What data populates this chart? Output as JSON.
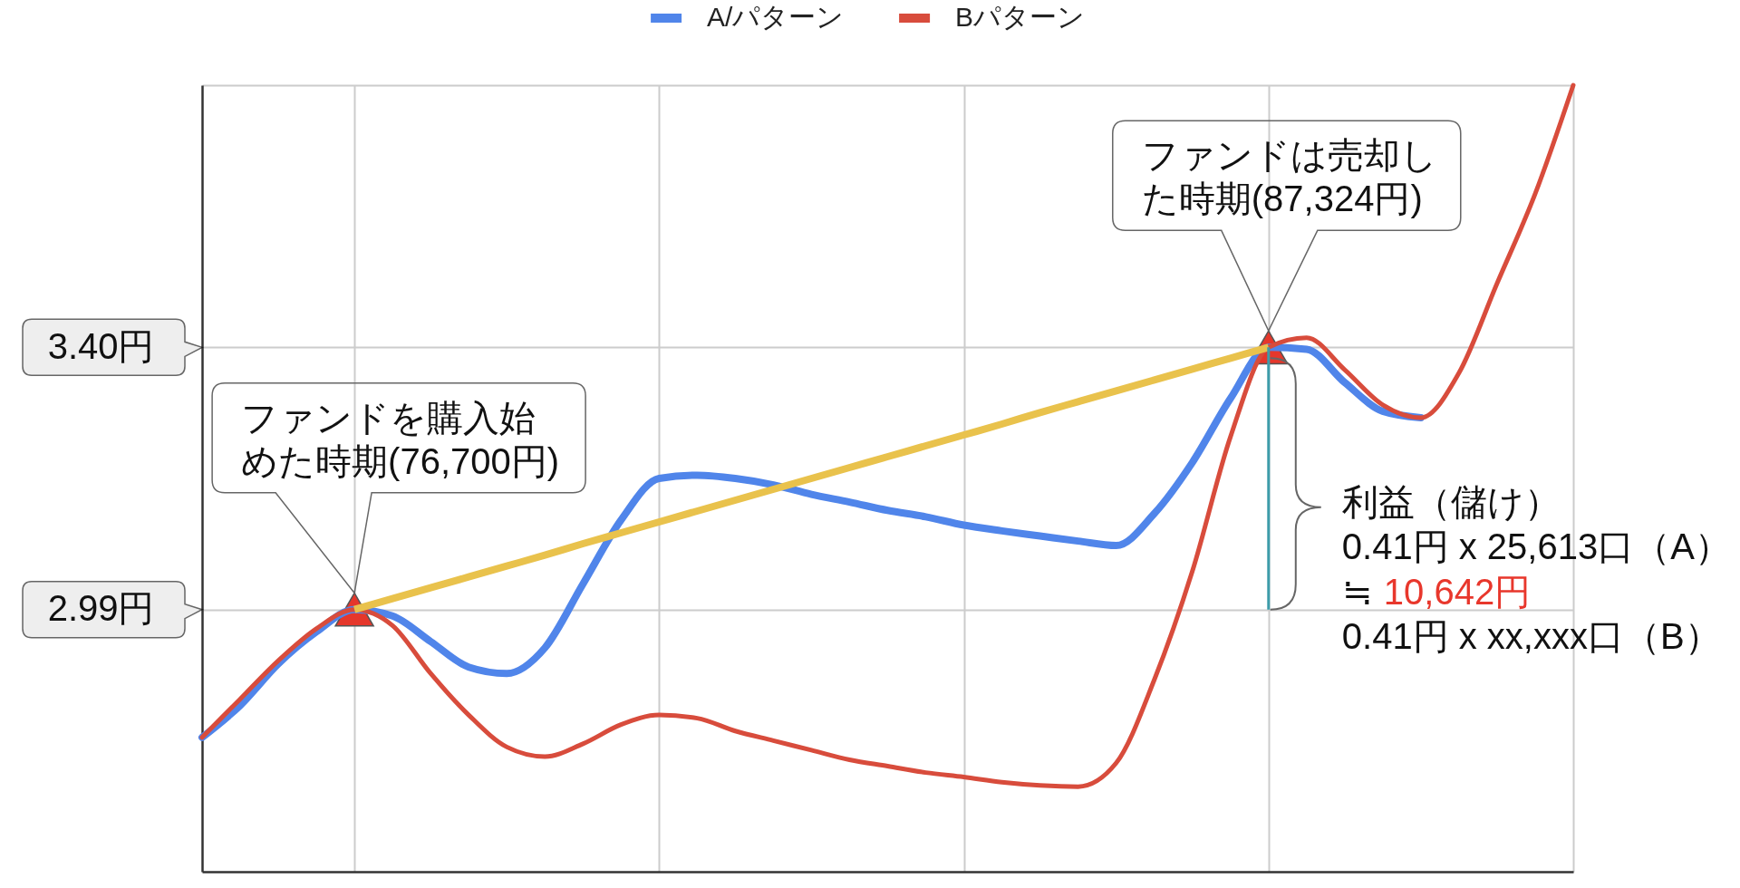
{
  "chart_data": {
    "type": "line",
    "legend": "top",
    "grid": true,
    "tick_labels": "y",
    "categories": [
      null,
      null,
      null,
      null,
      null,
      null,
      null,
      null,
      null,
      null,
      null,
      null,
      null,
      null,
      null,
      null,
      null,
      null,
      null,
      null,
      null,
      null,
      null,
      null,
      null,
      null,
      null,
      null,
      null,
      null,
      null,
      null,
      null,
      null,
      null,
      null,
      null
    ],
    "ylim": [
      2.58,
      3.81
    ],
    "yticks": [
      {
        "value": 2.99,
        "label": "2.99円"
      },
      {
        "value": 3.4,
        "label": "3.40円"
      },
      {
        "value": 3.81,
        "label": null
      }
    ],
    "series": [
      {
        "name": "A/パターン",
        "color": "#5085ea",
        "values": [
          2.79,
          2.84,
          2.905,
          2.955,
          2.99,
          2.98,
          2.94,
          2.9,
          2.89,
          2.93,
          3.03,
          3.13,
          3.195,
          3.2,
          3.195,
          3.185,
          3.17,
          3.158,
          3.145,
          3.135,
          3.122,
          3.113,
          3.105,
          3.097,
          3.09,
          3.14,
          3.22,
          3.32,
          3.4,
          3.397,
          3.345,
          3.3,
          3.29,
          null,
          null,
          null,
          null
        ]
      },
      {
        "name": "Bパターン",
        "color": "#d84c3c",
        "values": [
          2.79,
          2.85,
          2.91,
          2.96,
          2.99,
          2.965,
          2.89,
          2.825,
          2.775,
          2.76,
          2.78,
          2.81,
          2.825,
          2.82,
          2.8,
          2.785,
          2.77,
          2.755,
          2.745,
          2.735,
          2.728,
          2.72,
          2.715,
          2.713,
          2.75,
          2.88,
          3.05,
          3.26,
          3.4,
          3.415,
          3.365,
          3.31,
          3.29,
          3.36,
          3.5,
          3.64,
          3.81
        ]
      },
      {
        "type": "line",
        "color": "#e9c24c",
        "values": [
          null,
          null,
          null,
          null,
          2.99,
          3.007,
          3.024,
          3.041,
          3.058,
          3.075,
          3.093,
          3.11,
          3.127,
          3.144,
          3.161,
          3.178,
          3.195,
          3.212,
          3.229,
          3.246,
          3.263,
          3.28,
          3.298,
          3.315,
          3.332,
          3.349,
          3.366,
          3.383,
          3.4,
          null,
          null,
          null,
          null,
          null,
          null,
          null,
          null
        ]
      },
      {
        "type": "bar",
        "color": "#3d9caa",
        "base": [
          null,
          null,
          null,
          null,
          null,
          null,
          null,
          null,
          null,
          null,
          null,
          null,
          null,
          null,
          null,
          null,
          null,
          null,
          null,
          null,
          null,
          null,
          null,
          null,
          null,
          null,
          null,
          null,
          2.99,
          null,
          null,
          null,
          null,
          null,
          null,
          null,
          null
        ],
        "values": [
          null,
          null,
          null,
          null,
          null,
          null,
          null,
          null,
          null,
          null,
          null,
          null,
          null,
          null,
          null,
          null,
          null,
          null,
          null,
          null,
          null,
          null,
          null,
          null,
          null,
          null,
          null,
          null,
          0.41,
          null,
          null,
          null,
          null,
          null,
          null,
          null,
          null
        ]
      },
      {
        "type": "scatter",
        "marker": "triangle",
        "color": "#e5372b",
        "values": [
          null,
          null,
          null,
          null,
          2.99,
          null,
          null,
          null,
          null,
          null,
          null,
          null,
          null,
          null,
          null,
          null,
          null,
          null,
          null,
          null,
          null,
          null,
          null,
          null,
          null,
          null,
          null,
          null,
          3.4,
          null,
          null,
          null,
          null,
          null,
          null,
          null,
          null
        ]
      }
    ],
    "annotations": [
      "ファンドを購入始めた時期(76,700円)",
      "ファンドは売却した時期(87,324円)",
      "利益（儲け）",
      "0.41円 x 25,613口（A）",
      "≒",
      "10,642円",
      "0.41円 x xx,xxx口（B）"
    ]
  }
}
